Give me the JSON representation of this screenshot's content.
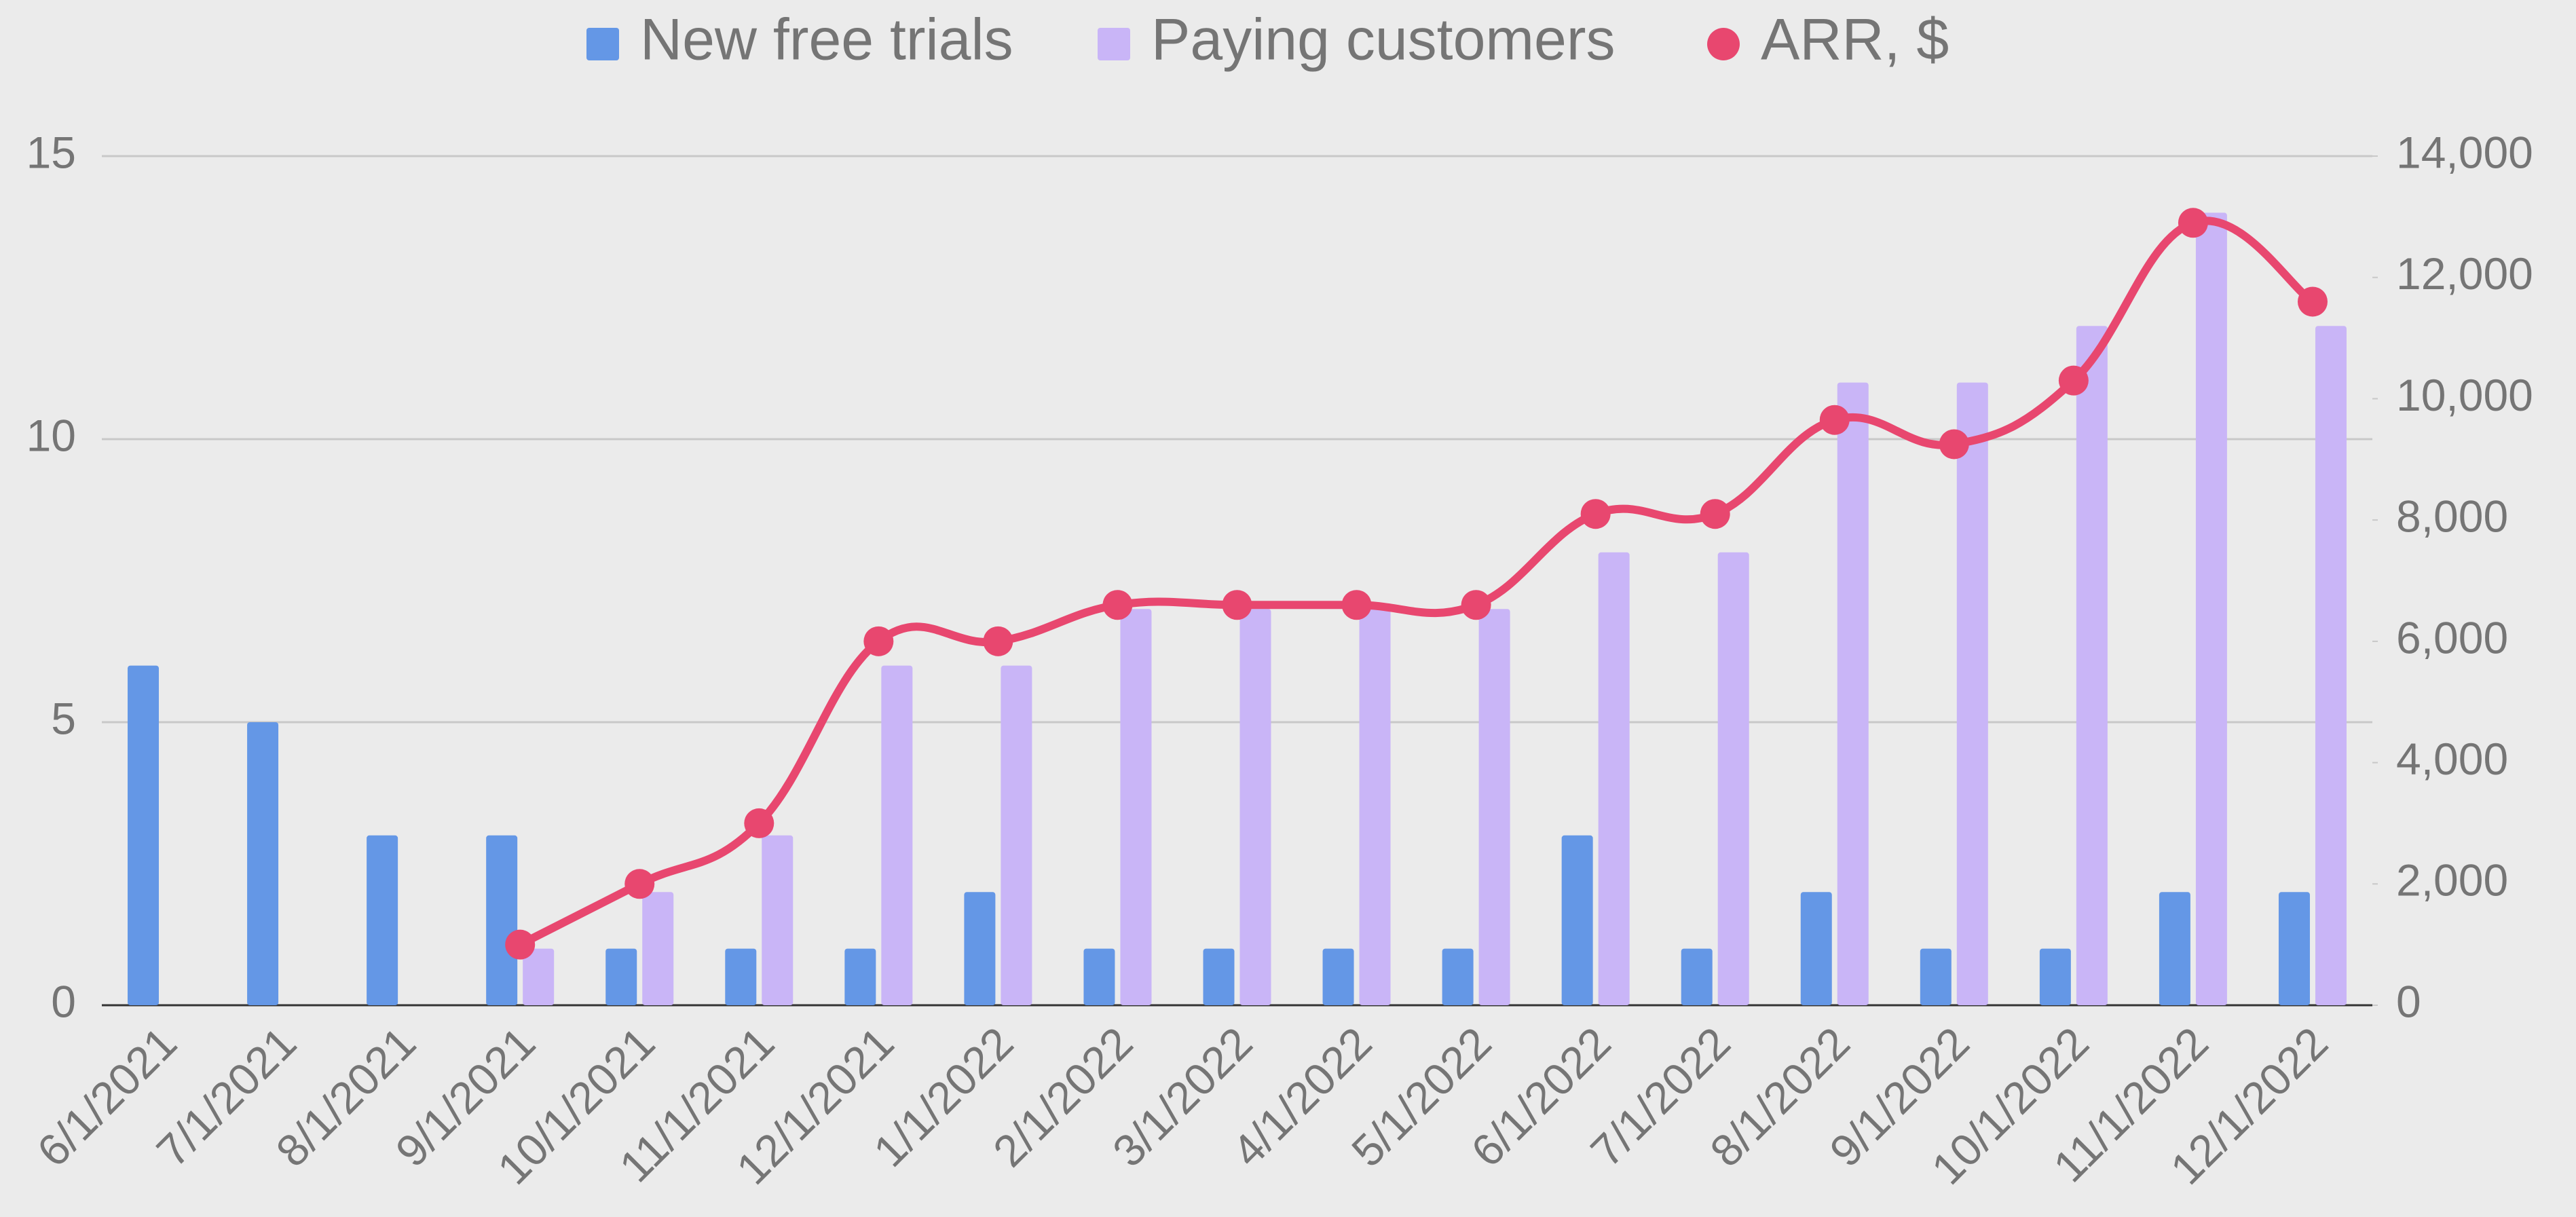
{
  "chart_data": {
    "type": "bar",
    "categories": [
      "6/1/2021",
      "7/1/2021",
      "8/1/2021",
      "9/1/2021",
      "10/1/2021",
      "11/1/2021",
      "12/1/2021",
      "1/1/2022",
      "2/1/2022",
      "3/1/2022",
      "4/1/2022",
      "5/1/2022",
      "6/1/2022",
      "7/1/2022",
      "8/1/2022",
      "9/1/2022",
      "10/1/2022",
      "11/1/2022",
      "12/1/2022"
    ],
    "series": [
      {
        "name": "New free trials",
        "color": "#6497e6",
        "values": [
          6,
          5,
          3,
          3,
          1,
          1,
          1,
          2,
          1,
          1,
          1,
          1,
          3,
          1,
          2,
          1,
          1,
          2,
          2
        ]
      },
      {
        "name": "Paying customers",
        "color": "#c9b5f7",
        "values": [
          null,
          null,
          null,
          1,
          2,
          3,
          6,
          6,
          7,
          7,
          7,
          7,
          8,
          8,
          11,
          11,
          12,
          14,
          12
        ]
      },
      {
        "name": "ARR, $",
        "color": "#e8476f",
        "type": "line",
        "axis": "y2",
        "values": [
          null,
          null,
          null,
          1000,
          2000,
          3000,
          6000,
          6000,
          6600,
          6600,
          6600,
          6600,
          8100,
          8100,
          9650,
          9250,
          10300,
          12900,
          11600
        ]
      }
    ],
    "ylim": [
      0,
      15
    ],
    "yticks": [
      0,
      5,
      10,
      15
    ],
    "y2lim": [
      0,
      14000
    ],
    "y2ticks": [
      0,
      {
        "value": 2000,
        "label": "2,000"
      },
      {
        "value": 4000,
        "label": "4,000"
      },
      {
        "value": 6000,
        "label": "6,000"
      },
      {
        "value": 8000,
        "label": "8,000"
      },
      {
        "value": 10000,
        "label": "10,000"
      },
      {
        "value": 12000,
        "label": "12,000"
      },
      {
        "value": 14000,
        "label": "14,000"
      }
    ],
    "grid": true,
    "legend": "top"
  }
}
